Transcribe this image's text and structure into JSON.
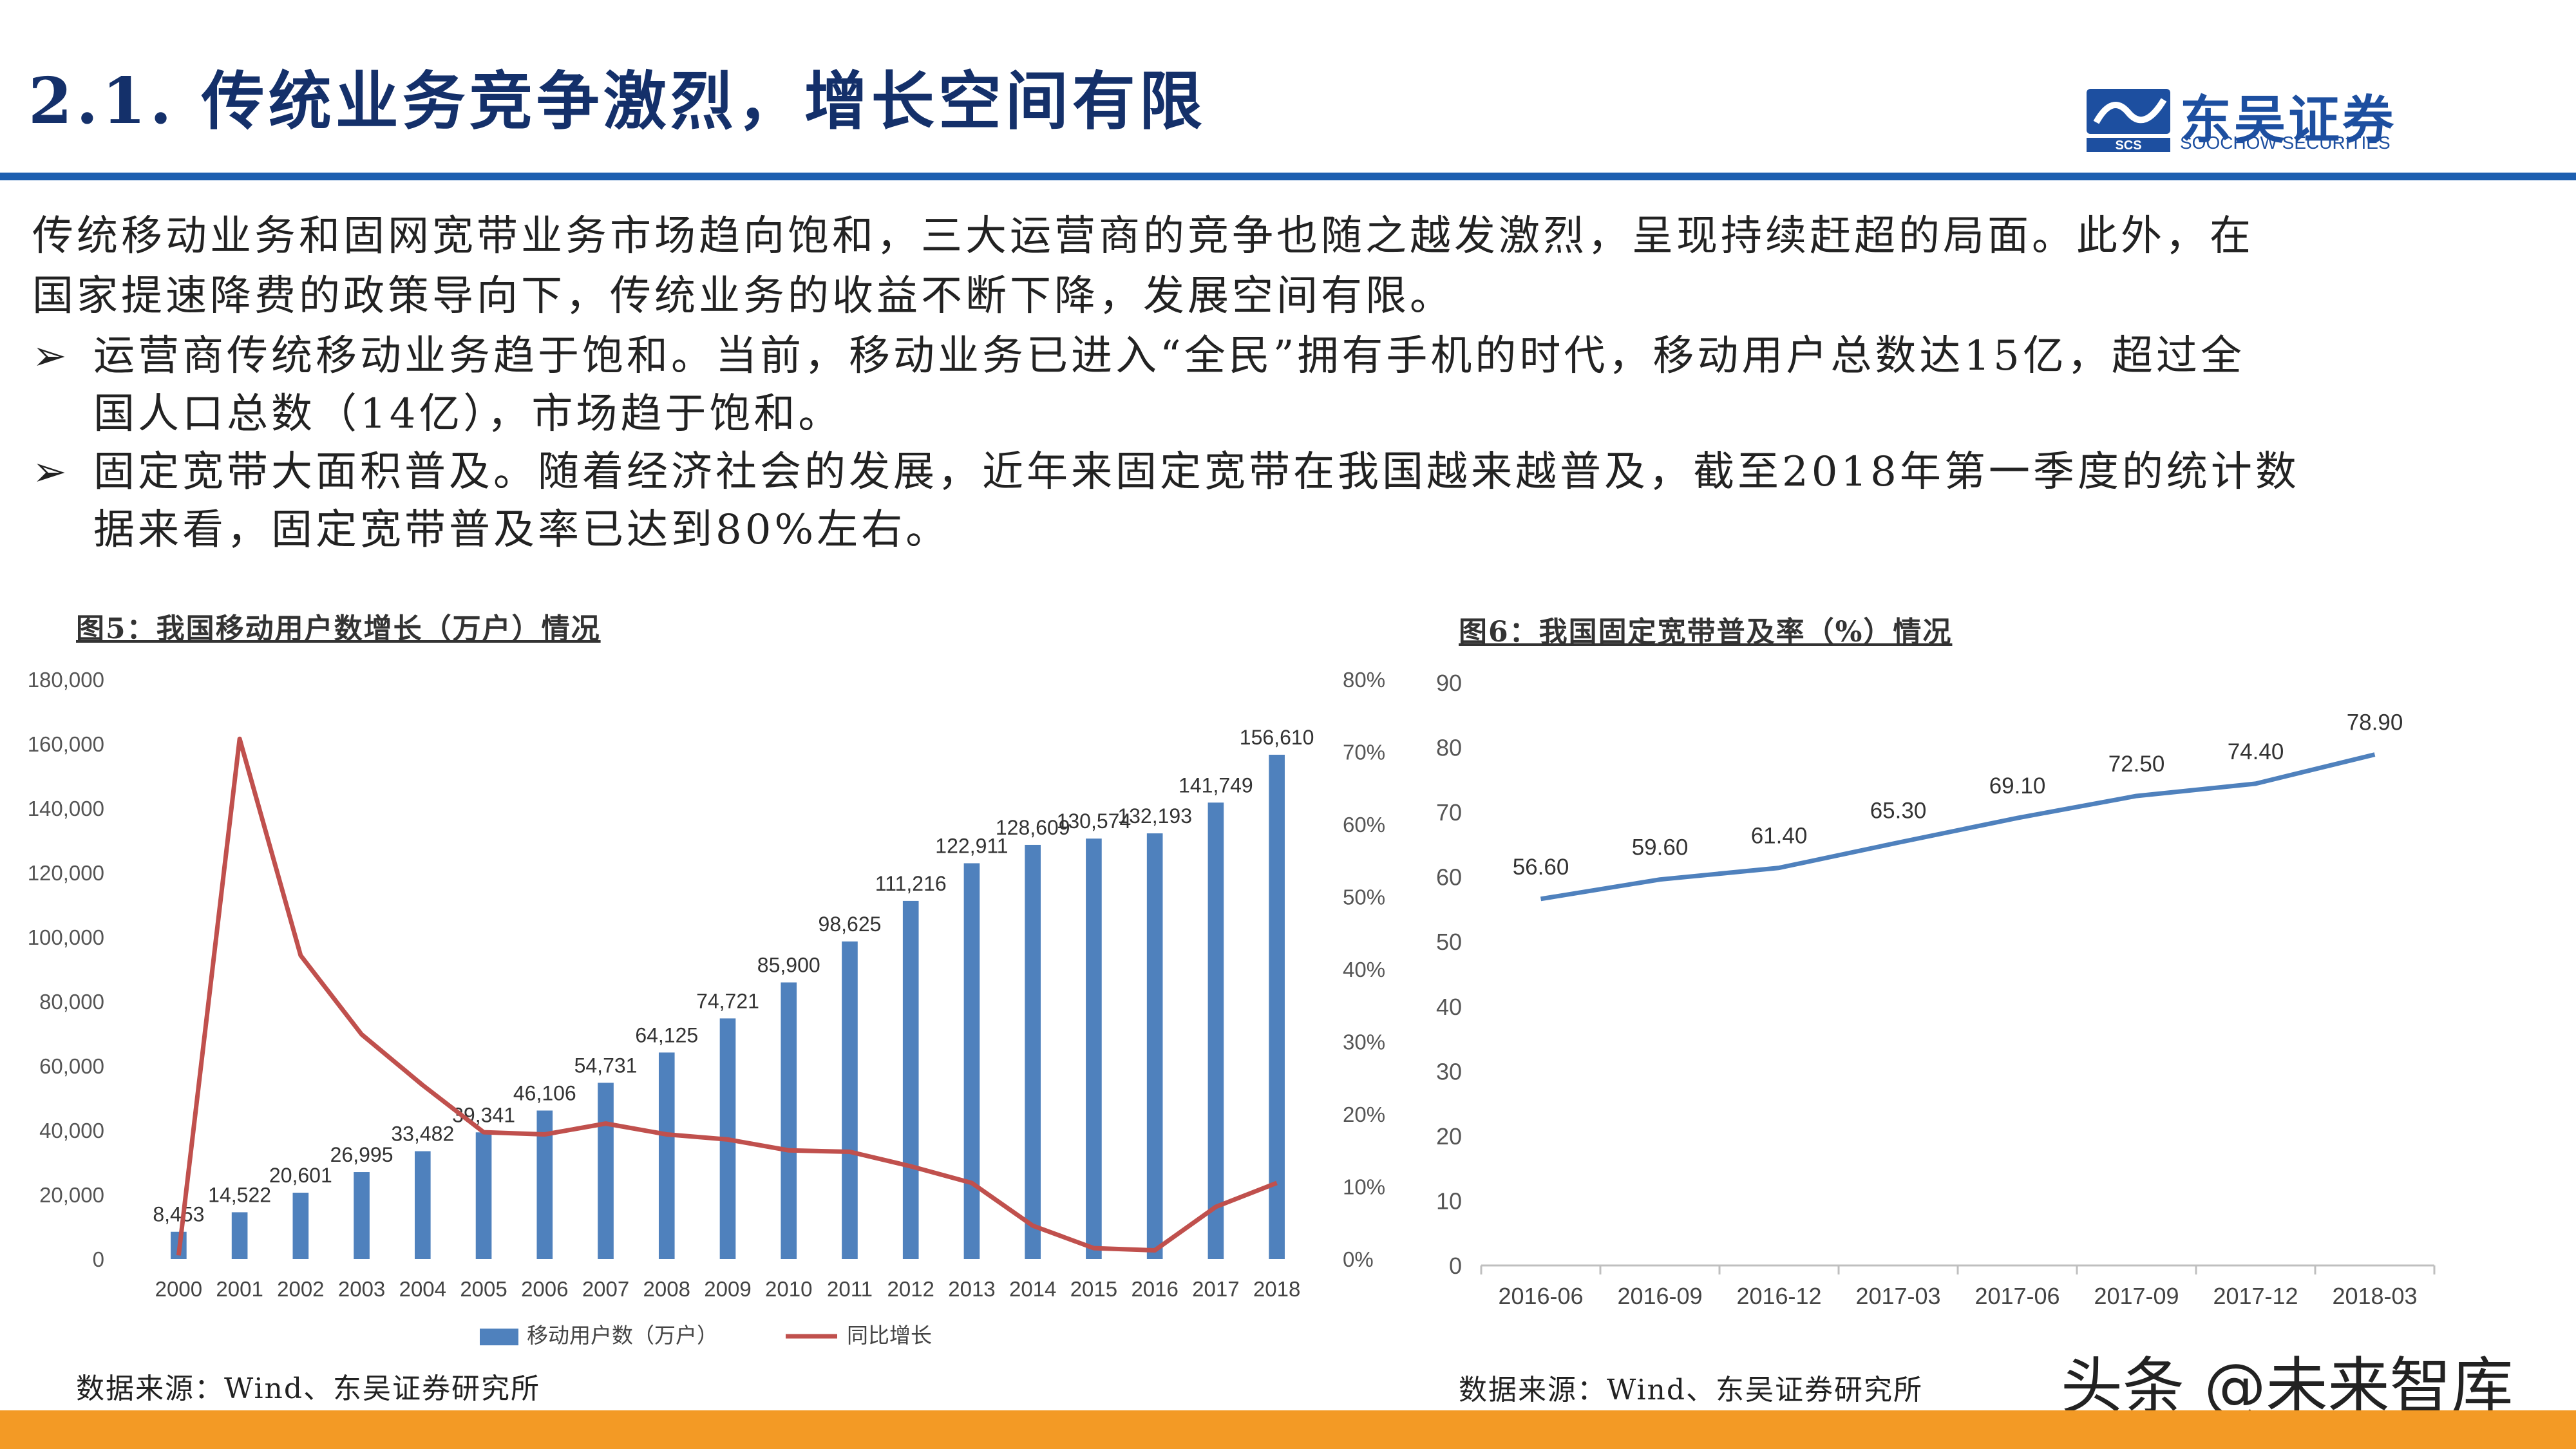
{
  "header": {
    "title": "2.1. 传统业务竞争激烈，增长空间有限",
    "logo_text": "东吴证券",
    "logo_sub": "SOOCHOW SECURITIES",
    "logo_abbr": "SCS"
  },
  "body": {
    "intro_line1": "传统移动业务和固网宽带业务市场趋向饱和，三大运营商的竞争也随之越发激烈，呈现持续赶超的局面。此外，在",
    "intro_line2": "国家提速降费的政策导向下，传统业务的收益不断下降，发展空间有限。",
    "bullet1_line1": "运营商传统移动业务趋于饱和。当前，移动业务已进入“全民”拥有手机的时代，移动用户总数达15亿，超过全",
    "bullet1_line2": "国人口总数（14亿），市场趋于饱和。",
    "bullet2_line1": "固定宽带大面积普及。随着经济社会的发展，近年来固定宽带在我国越来越普及，截至2018年第一季度的统计数",
    "bullet2_line2": "据来看，固定宽带普及率已达到80%左右。",
    "bullet_symbol": "➢"
  },
  "footer": {
    "watermark": "头条 @未来智库",
    "bar_color": "#f39a25"
  },
  "chart_data": [
    {
      "type": "bar",
      "title": "图5：我国移动用户数增长（万户）情况",
      "source": "数据来源：Wind、东吴证券研究所",
      "categories": [
        "2000",
        "2001",
        "2002",
        "2003",
        "2004",
        "2005",
        "2006",
        "2007",
        "2008",
        "2009",
        "2010",
        "2011",
        "2012",
        "2013",
        "2014",
        "2015",
        "2016",
        "2017",
        "2018"
      ],
      "series": [
        {
          "name": "移动用户数（万户）",
          "type": "bar",
          "axis": "left",
          "color": "#4f81bd",
          "values": [
            8453,
            14522,
            20601,
            26995,
            33482,
            39341,
            46106,
            54731,
            64125,
            74721,
            85900,
            98625,
            111216,
            122911,
            128609,
            130574,
            132193,
            141749,
            156610
          ],
          "labels": [
            "8,453",
            "14,522",
            "20,601",
            "26,995",
            "33,482",
            "39,341",
            "46,106",
            "54,731",
            "64,125",
            "74,721",
            "85,900",
            "98,625",
            "111,216",
            "122,911",
            "128,609",
            "130,574",
            "132,193",
            "141,749",
            "156,610"
          ]
        },
        {
          "name": "同比增长",
          "type": "line",
          "axis": "right",
          "color": "#c0504d",
          "values": [
            0.5,
            71.8,
            41.9,
            31.0,
            24.0,
            17.5,
            17.2,
            18.7,
            17.2,
            16.5,
            15.0,
            14.8,
            12.8,
            10.5,
            4.6,
            1.5,
            1.2,
            7.2,
            10.5
          ]
        }
      ],
      "ylim": [
        0,
        180000
      ],
      "y_ticks": [
        "0",
        "20,000",
        "40,000",
        "60,000",
        "80,000",
        "100,000",
        "120,000",
        "140,000",
        "160,000",
        "180,000"
      ],
      "y2lim": [
        0,
        80
      ],
      "y2_ticks": [
        "0%",
        "10%",
        "20%",
        "30%",
        "40%",
        "50%",
        "60%",
        "70%",
        "80%"
      ],
      "legend": "bottom"
    },
    {
      "type": "line",
      "title": "图6：我国固定宽带普及率（%）情况",
      "source": "数据来源：Wind、东吴证券研究所",
      "categories": [
        "2016-06",
        "2016-09",
        "2016-12",
        "2017-03",
        "2017-06",
        "2017-09",
        "2017-12",
        "2018-03"
      ],
      "series": [
        {
          "color": "#4f81bd",
          "values": [
            56.6,
            59.6,
            61.4,
            65.3,
            69.1,
            72.5,
            74.4,
            78.9
          ],
          "labels": [
            "56.60",
            "59.60",
            "61.40",
            "65.30",
            "69.10",
            "72.50",
            "74.40",
            "78.90"
          ]
        }
      ],
      "ylim": [
        0,
        90
      ],
      "y_ticks": [
        "0",
        "10",
        "20",
        "30",
        "40",
        "50",
        "60",
        "70",
        "80",
        "90"
      ],
      "legend": "none"
    }
  ]
}
